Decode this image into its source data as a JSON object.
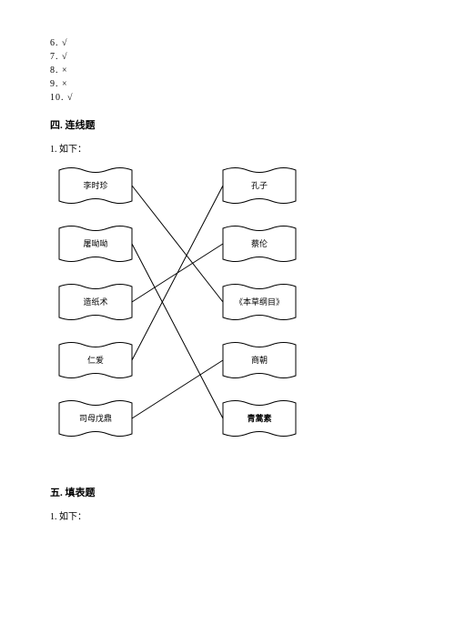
{
  "answers": {
    "items": [
      {
        "num": "6.",
        "mark": "√"
      },
      {
        "num": "7.",
        "mark": "√"
      },
      {
        "num": "8.",
        "mark": "×"
      },
      {
        "num": "9.",
        "mark": "×"
      },
      {
        "num": "10.",
        "mark": "√"
      }
    ]
  },
  "section4": {
    "title": "四. 连线题",
    "prompt": "1. 如下："
  },
  "diagram": {
    "left": [
      {
        "label": "李时珍",
        "bold": false
      },
      {
        "label": "屠呦呦",
        "bold": false
      },
      {
        "label": "造纸术",
        "bold": false
      },
      {
        "label": "仁爱",
        "bold": false
      },
      {
        "label": "司母戊鼎",
        "bold": false
      }
    ],
    "right": [
      {
        "label": "孔子",
        "bold": false
      },
      {
        "label": "蔡伦",
        "bold": false
      },
      {
        "label": "《本草纲目》",
        "bold": false
      },
      {
        "label": "商朝",
        "bold": false
      },
      {
        "label": "青蒿素",
        "bold": true
      }
    ],
    "connections": [
      {
        "from": 0,
        "to": 2
      },
      {
        "from": 1,
        "to": 4
      },
      {
        "from": 2,
        "to": 1
      },
      {
        "from": 3,
        "to": 0
      },
      {
        "from": 4,
        "to": 3
      }
    ],
    "layout": {
      "leftX": 50,
      "rightX": 230,
      "flagW": 80,
      "flagH": 34,
      "startY": 28,
      "gapY": 64,
      "leftAnchorX": 90,
      "rightAnchorX": 190
    },
    "stroke": "#000000",
    "strokeWidth": 1
  },
  "section5": {
    "title": "五. 填表题",
    "prompt": "1. 如下："
  }
}
